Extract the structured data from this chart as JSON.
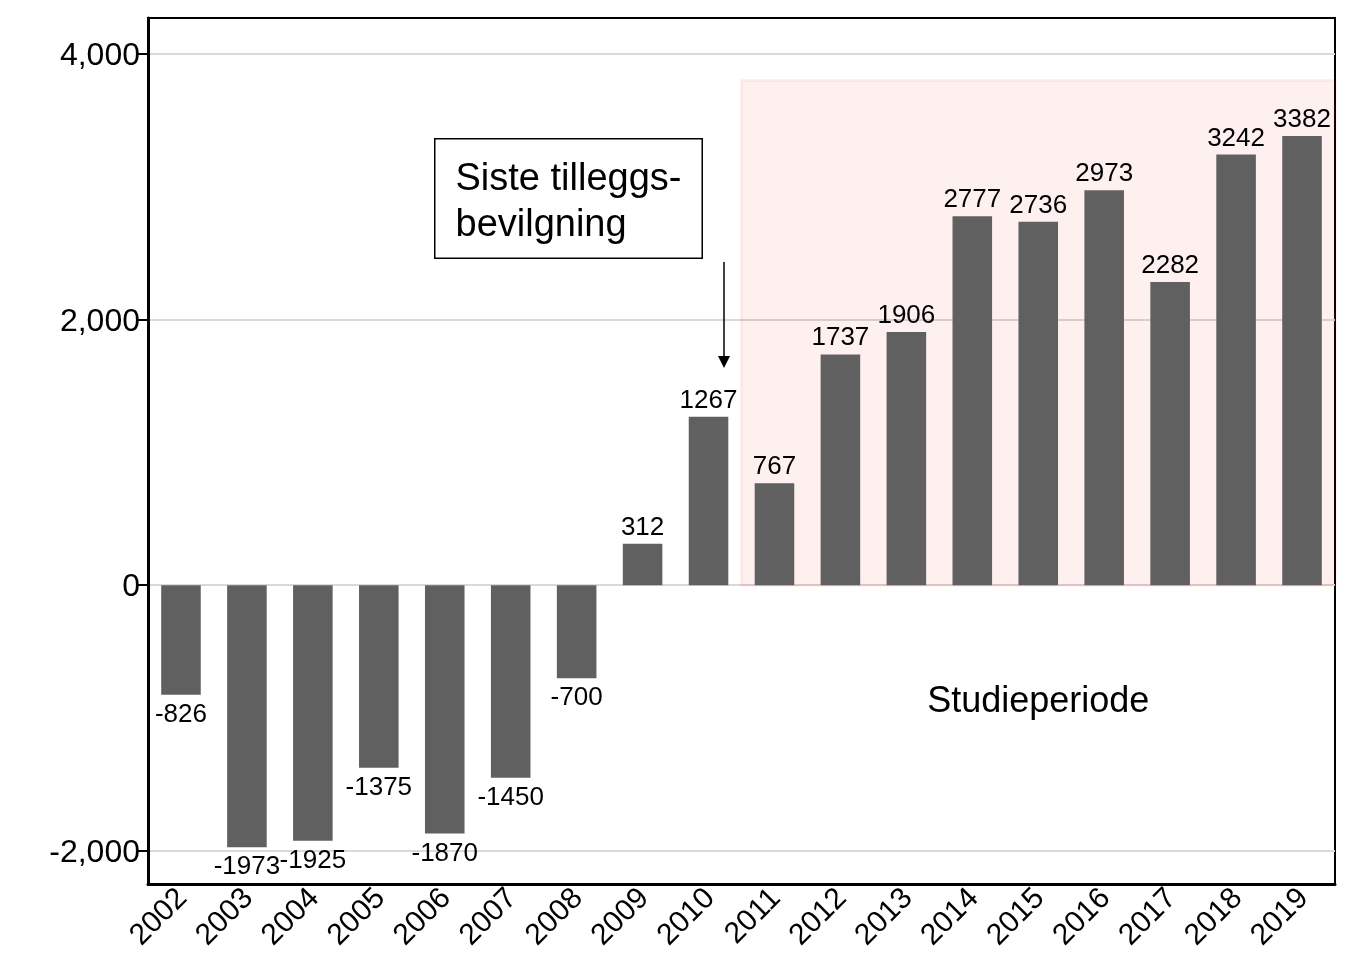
{
  "chart_data": {
    "type": "bar",
    "categories": [
      "2002",
      "2003",
      "2004",
      "2005",
      "2006",
      "2007",
      "2008",
      "2009",
      "2010",
      "2011",
      "2012",
      "2013",
      "2014",
      "2015",
      "2016",
      "2017",
      "2018",
      "2019"
    ],
    "values": [
      -826,
      -1973,
      -1925,
      -1375,
      -1870,
      -1450,
      -700,
      312,
      1267,
      767,
      1737,
      1906,
      2777,
      2736,
      2973,
      2282,
      3242,
      3382
    ],
    "color": "#606060",
    "ylim": [
      -2250,
      4270
    ],
    "yticks": [
      {
        "value": -2000,
        "label": "-2,000"
      },
      {
        "value": 0,
        "label": "0"
      },
      {
        "value": 2000,
        "label": "2,000"
      },
      {
        "value": 4000,
        "label": "4,000"
      }
    ],
    "grid": "y",
    "data_labels": true,
    "annotations": [
      "Siste tilleggs-\nbevilgning"
    ],
    "bands": [
      {
        "axis": "x",
        "from": "2011",
        "to": "2019",
        "label": "Studieperiode",
        "color": "#ff0000"
      }
    ]
  }
}
